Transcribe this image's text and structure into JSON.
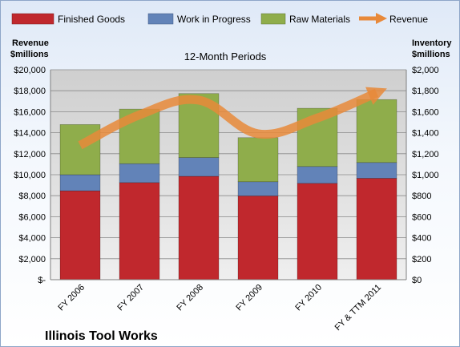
{
  "chart_data": {
    "type": "bar",
    "subtitle": "12-Month Periods",
    "company": "Illinois Tool Works",
    "categories": [
      "FY 2006",
      "FY 2007",
      "FY 2008",
      "FY 2009",
      "FY 2010",
      "FY & TTM 2011"
    ],
    "left_axis": {
      "label_line1": "Revenue",
      "label_line2": "$millions",
      "ylim": [
        0,
        20000
      ],
      "ticks": [
        {
          "value": 0,
          "label": "$-"
        },
        {
          "value": 2000,
          "label": "$2,000"
        },
        {
          "value": 4000,
          "label": "$4,000"
        },
        {
          "value": 6000,
          "label": "$6,000"
        },
        {
          "value": 8000,
          "label": "$8,000"
        },
        {
          "value": 10000,
          "label": "$10,000"
        },
        {
          "value": 12000,
          "label": "$12,000"
        },
        {
          "value": 14000,
          "label": "$14,000"
        },
        {
          "value": 16000,
          "label": "$16,000"
        },
        {
          "value": 18000,
          "label": "$18,000"
        },
        {
          "value": 20000,
          "label": "$20,000"
        }
      ]
    },
    "right_axis": {
      "label_line1": "Inventory",
      "label_line2": "$millions",
      "ylim": [
        0,
        2000
      ],
      "ticks": [
        {
          "value": 0,
          "label": "$0"
        },
        {
          "value": 200,
          "label": "$200"
        },
        {
          "value": 400,
          "label": "$400"
        },
        {
          "value": 600,
          "label": "$600"
        },
        {
          "value": 800,
          "label": "$800"
        },
        {
          "value": 1000,
          "label": "$1,000"
        },
        {
          "value": 1200,
          "label": "$1,200"
        },
        {
          "value": 1400,
          "label": "$1,400"
        },
        {
          "value": 1600,
          "label": "$1,600"
        },
        {
          "value": 1800,
          "label": "$1,800"
        },
        {
          "value": 2000,
          "label": "$2,000"
        }
      ]
    },
    "inventory_series": [
      {
        "name": "Finished Goods",
        "color": "#c0282d",
        "axis": "right",
        "values": [
          847,
          925,
          985,
          798,
          918,
          966
        ]
      },
      {
        "name": "Work in Progress",
        "color": "#6283b8",
        "axis": "right",
        "values": [
          153,
          180,
          178,
          135,
          160,
          150
        ]
      },
      {
        "name": "Raw Materials",
        "color": "#8fad4b",
        "axis": "right",
        "values": [
          478,
          520,
          610,
          420,
          555,
          600
        ]
      }
    ],
    "revenue_series": {
      "name": "Revenue",
      "color": "#e8893a",
      "axis": "left",
      "values": [
        12800,
        15700,
        17100,
        13900,
        15400,
        17800
      ]
    },
    "grid": true,
    "legend_position": "top"
  }
}
